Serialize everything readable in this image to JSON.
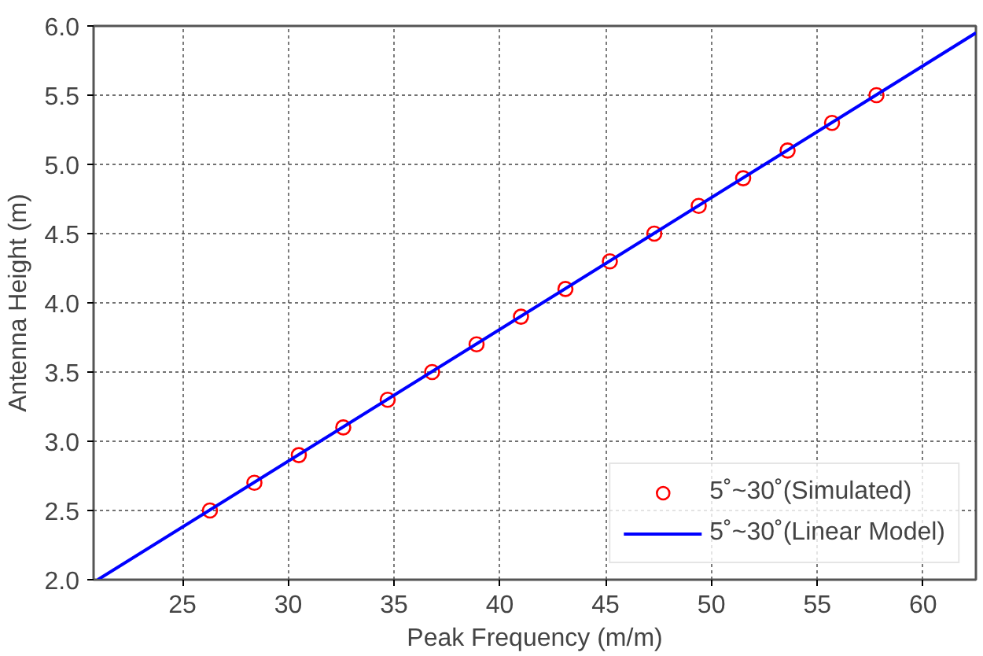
{
  "chart_data": {
    "type": "scatter",
    "xlabel": "Peak Frequency (m/m)",
    "ylabel": "Antenna Height (m)",
    "xlim": [
      20.8,
      62.5
    ],
    "ylim": [
      2.0,
      6.0
    ],
    "xticks": [
      25,
      30,
      35,
      40,
      45,
      50,
      55,
      60
    ],
    "yticks": [
      {
        "value": 2.0,
        "label": "2.0"
      },
      {
        "value": 2.5,
        "label": "2.5"
      },
      {
        "value": 3.0,
        "label": "3.0"
      },
      {
        "value": 3.5,
        "label": "3.5"
      },
      {
        "value": 4.0,
        "label": "4.0"
      },
      {
        "value": 4.5,
        "label": "4.5"
      },
      {
        "value": 5.0,
        "label": "5.0"
      },
      {
        "value": 5.5,
        "label": "5.5"
      },
      {
        "value": 6.0,
        "label": "6.0"
      }
    ],
    "grid": true,
    "legend": "bottom right",
    "series": [
      {
        "name": "5˚~30˚(Simulated)",
        "marker": "circle",
        "color": "#ff0000",
        "x": [
          26.3,
          28.4,
          30.5,
          32.6,
          34.7,
          36.8,
          38.9,
          41.0,
          43.1,
          45.2,
          47.3,
          49.4,
          51.5,
          53.6,
          55.7,
          57.8
        ],
        "values": [
          2.5,
          2.7,
          2.9,
          3.1,
          3.3,
          3.5,
          3.7,
          3.9,
          4.1,
          4.3,
          4.5,
          4.7,
          4.9,
          5.1,
          5.3,
          5.5
        ]
      },
      {
        "name": "5˚~30˚(Linear Model)",
        "type": "line",
        "line_style": "solid",
        "color": "#0000ff",
        "x": [
          21.0,
          62.5
        ],
        "values": [
          2.0,
          5.95
        ]
      }
    ]
  }
}
